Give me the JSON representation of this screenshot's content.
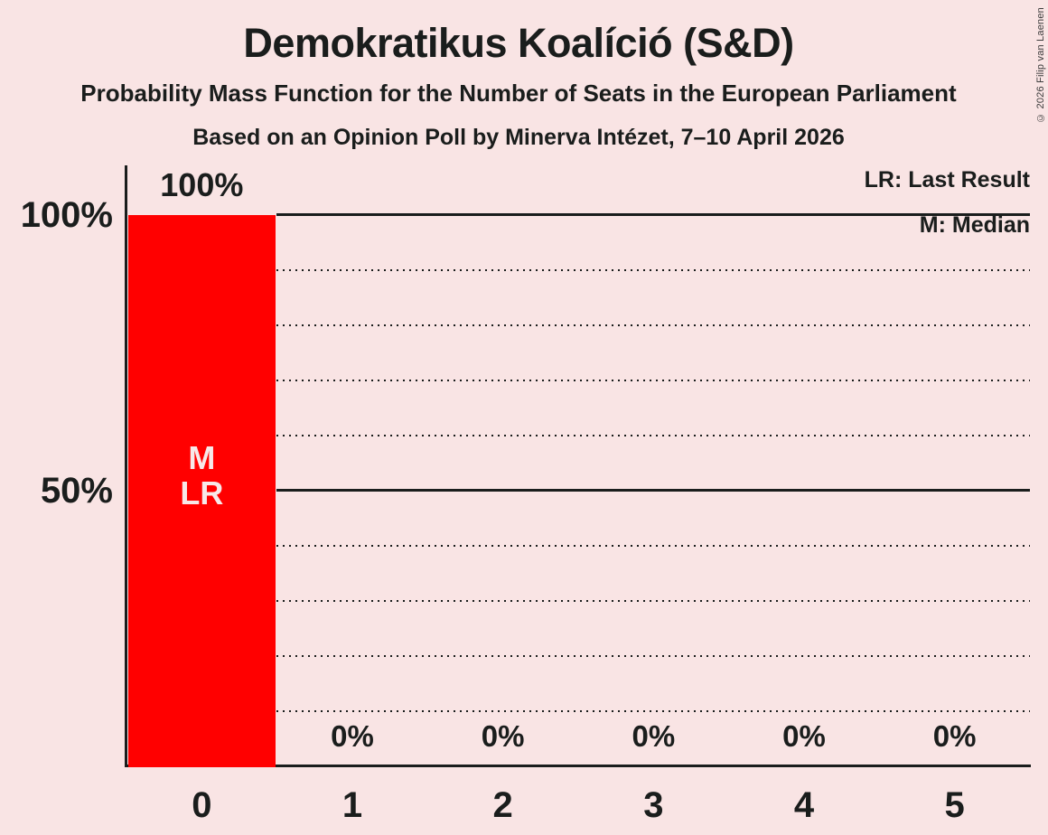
{
  "title": "Demokratikus Koalíció (S&D)",
  "subtitle1": "Probability Mass Function for the Number of Seats in the European Parliament",
  "subtitle2": "Based on an Opinion Poll by Minerva Intézet, 7–10 April 2026",
  "copyright": "© 2026 Filip van Laenen",
  "legend": {
    "last_result": "LR: Last Result",
    "median": "M: Median"
  },
  "colors": {
    "background": "#f9e4e4",
    "bar": "#ff0000",
    "text": "#1a1d1c",
    "grid": "#1a1d1c",
    "bar_label": "#f7e9e9"
  },
  "chart_data": {
    "type": "bar",
    "title": "Demokratikus Koalíció (S&D)",
    "categories": [
      "0",
      "1",
      "2",
      "3",
      "4",
      "5"
    ],
    "values": [
      100,
      0,
      0,
      0,
      0,
      0
    ],
    "value_labels": [
      "100%",
      "0%",
      "0%",
      "0%",
      "0%",
      "0%"
    ],
    "bar_annotations": [
      {
        "category_index": 0,
        "lines": [
          "M",
          "LR"
        ]
      }
    ],
    "y_axis_ticks": [
      {
        "pct": 100,
        "label": "100%"
      },
      {
        "pct": 50,
        "label": "50%"
      }
    ],
    "solid_gridlines_pct": [
      100,
      50
    ],
    "dotted_gridlines_pct": [
      90,
      80,
      70,
      60,
      40,
      30,
      20,
      10
    ],
    "ylim": [
      0,
      100
    ],
    "grid": "horizontal-dotted",
    "legend_position": "top-right",
    "legend_entries": [
      "LR: Last Result",
      "M: Median"
    ]
  }
}
